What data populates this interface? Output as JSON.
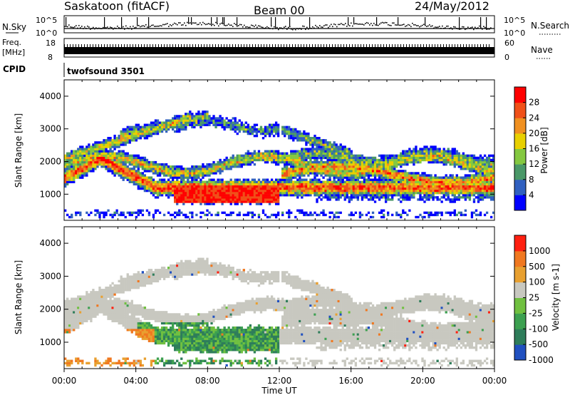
{
  "header": {
    "station": "Saskatoon (fitACF)",
    "beam": "Beam 00",
    "date": "24/May/2012"
  },
  "noise_panel": {
    "left_label": "N.Sky",
    "right_label": "N.Search",
    "left_ticks": [
      "10^5",
      "10^0"
    ],
    "right_ticks": [
      "10^5",
      "10^0"
    ]
  },
  "freq_panel": {
    "left_label_1": "Freq.",
    "left_label_2": "[MHz]",
    "left_ticks": [
      "18",
      "8"
    ],
    "right_label": "Nave",
    "right_ticks": [
      "60",
      "0"
    ]
  },
  "cpid_panel": {
    "label": "CPID",
    "text": "twofsound 3501"
  },
  "chart_data": [
    {
      "type": "heatmap",
      "name": "power",
      "ylabel": "Slant Range [km]",
      "ylim": [
        200,
        4500
      ],
      "yticks": [
        "4000",
        "3000",
        "2000",
        "1000"
      ],
      "colorbar_label": "Power [dB]",
      "colorbar_ticks": [
        "28",
        "24",
        "20",
        "16",
        "12",
        "8",
        "4"
      ],
      "colors": [
        "#0000ff",
        "#3060c0",
        "#4a9868",
        "#84c840",
        "#e8d000",
        "#f09020",
        "#f05018",
        "#ff0000"
      ]
    },
    {
      "type": "heatmap",
      "name": "velocity",
      "ylabel": "Slant Range [km]",
      "ylim": [
        200,
        4500
      ],
      "yticks": [
        "4000",
        "3000",
        "2000",
        "1000"
      ],
      "colorbar_label": "Velocity [m s-1]",
      "colorbar_ticks": [
        "1000",
        "500",
        "100",
        "25",
        "-25",
        "-100",
        "-500",
        "-1000"
      ],
      "colors": [
        "#2050c0",
        "#2e7d5a",
        "#3ca050",
        "#70c040",
        "#c8c8c0",
        "#e8a030",
        "#f07820",
        "#ff2010"
      ]
    }
  ],
  "time_axis": {
    "label": "Time UT",
    "ticks": [
      "00:00",
      "04:00",
      "08:00",
      "12:00",
      "16:00",
      "20:00",
      "00:00"
    ]
  }
}
